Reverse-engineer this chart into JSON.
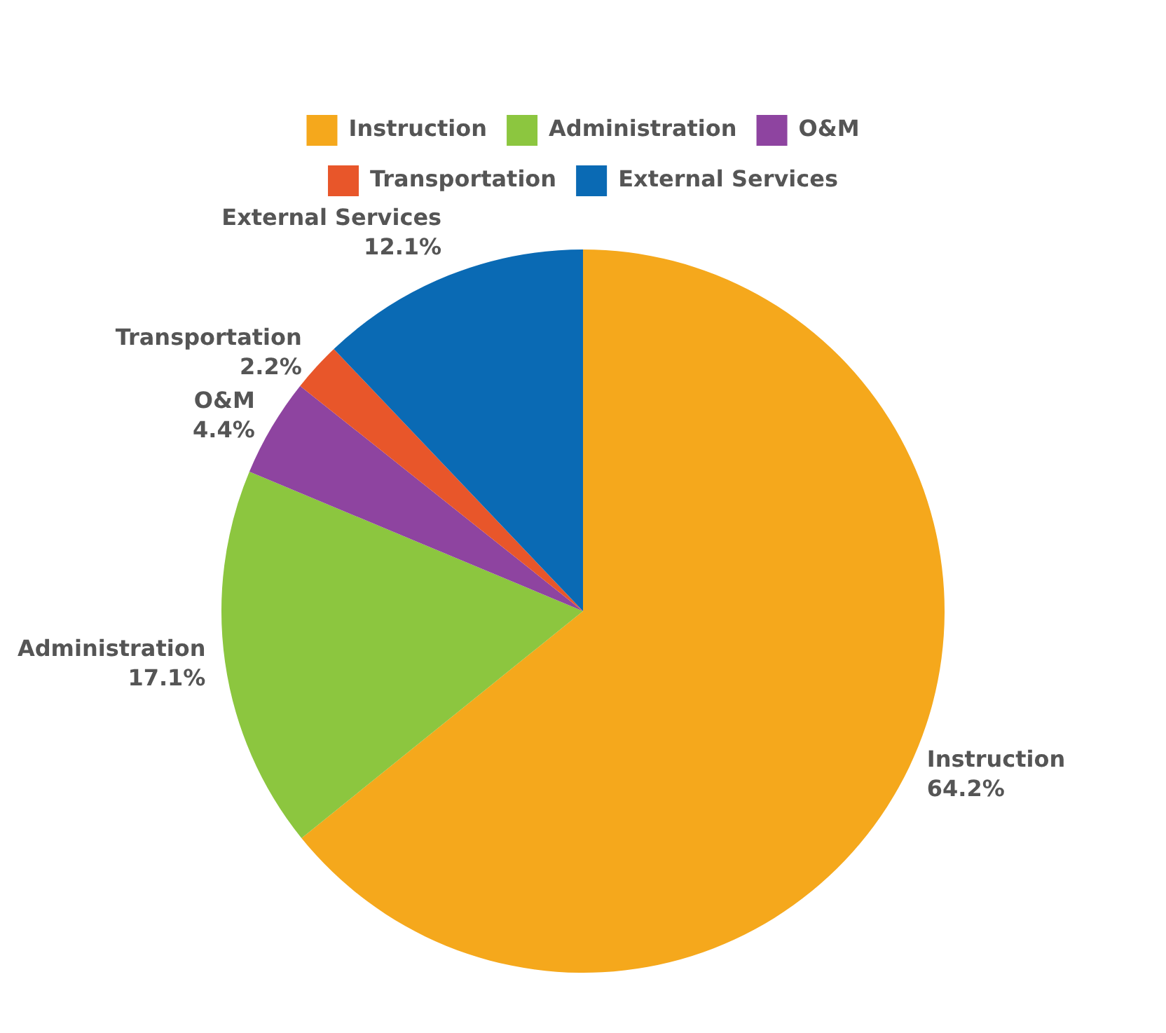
{
  "chart_data": {
    "type": "pie",
    "categories": [
      "Instruction",
      "Administration",
      "O&M",
      "Transportation",
      "External Services"
    ],
    "values": [
      64.2,
      17.1,
      4.4,
      2.2,
      12.1
    ],
    "value_labels": [
      "64.2%",
      "17.1%",
      "4.4%",
      "2.2%",
      "12.1%"
    ],
    "colors": [
      "#f5a81c",
      "#8cc63f",
      "#8e44a0",
      "#e8562a",
      "#0a6ab4"
    ],
    "legend": "top"
  }
}
